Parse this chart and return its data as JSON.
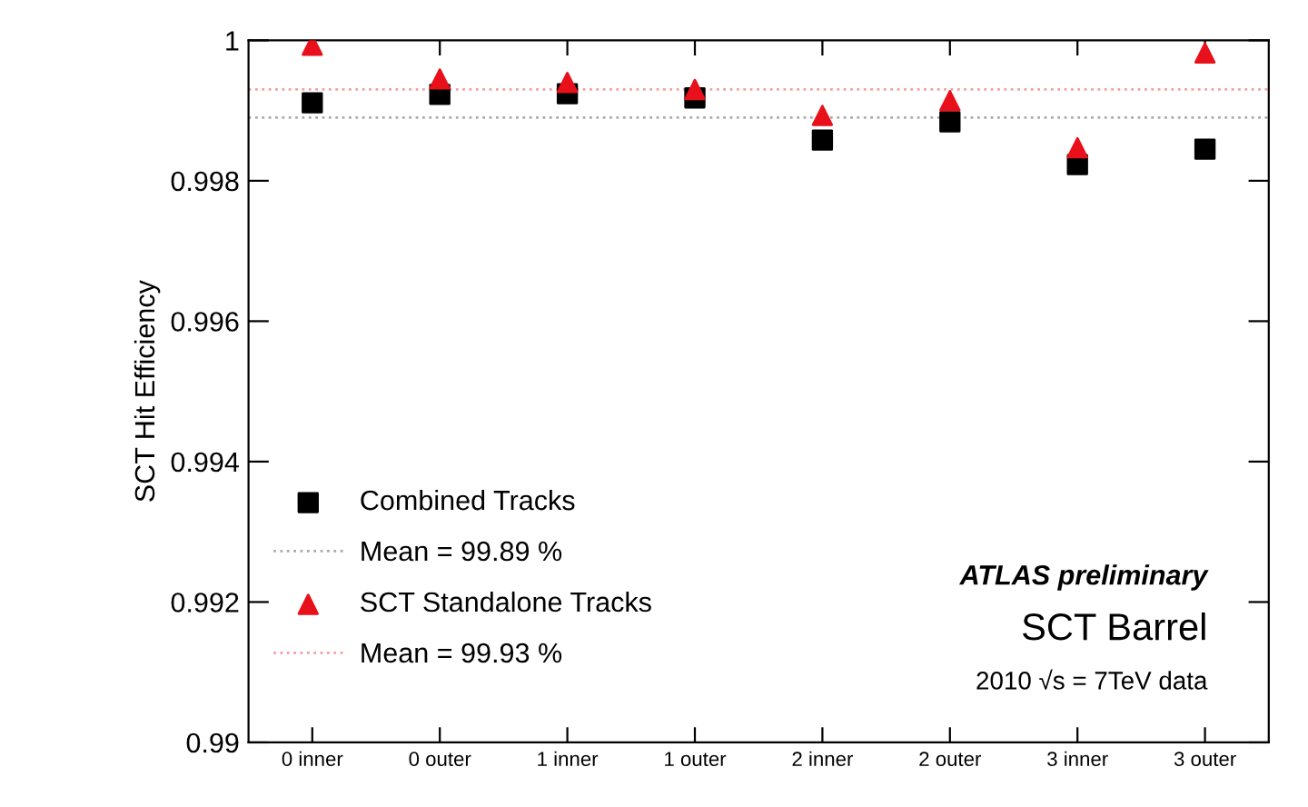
{
  "chart_data": {
    "type": "scatter",
    "ylabel": "SCT Hit Efficiency",
    "categories": [
      "0 inner",
      "0 outer",
      "1 inner",
      "1 outer",
      "2 inner",
      "2 outer",
      "3 inner",
      "3 outer"
    ],
    "series": [
      {
        "name": "Combined Tracks",
        "color": "#000000",
        "marker": "square",
        "values": [
          0.99911,
          0.99923,
          0.99924,
          0.99918,
          0.99858,
          0.99884,
          0.99823,
          0.99845
        ]
      },
      {
        "name": "SCT Standalone Tracks",
        "color": "#e8101a",
        "marker": "triangle",
        "values": [
          0.99993,
          0.99945,
          0.9994,
          0.9993,
          0.99893,
          0.99914,
          0.99847,
          0.99982
        ]
      }
    ],
    "ref_lines": [
      {
        "axis": "y",
        "value": 0.9989,
        "label": "Mean = 99.89 %",
        "color": "#aaaaaa",
        "line_style": "dotted"
      },
      {
        "axis": "y",
        "value": 0.9993,
        "label": "Mean = 99.93 %",
        "color": "#f4a0a0",
        "line_style": "dotted"
      }
    ],
    "ylim": [
      0.99,
      1
    ],
    "yticks": [
      0.99,
      0.992,
      0.994,
      0.996,
      0.998,
      1
    ],
    "annotations": [
      "ATLAS preliminary",
      "SCT Barrel",
      "2010 √s = 7TeV data"
    ],
    "legend": "bottom left",
    "grid": false
  }
}
